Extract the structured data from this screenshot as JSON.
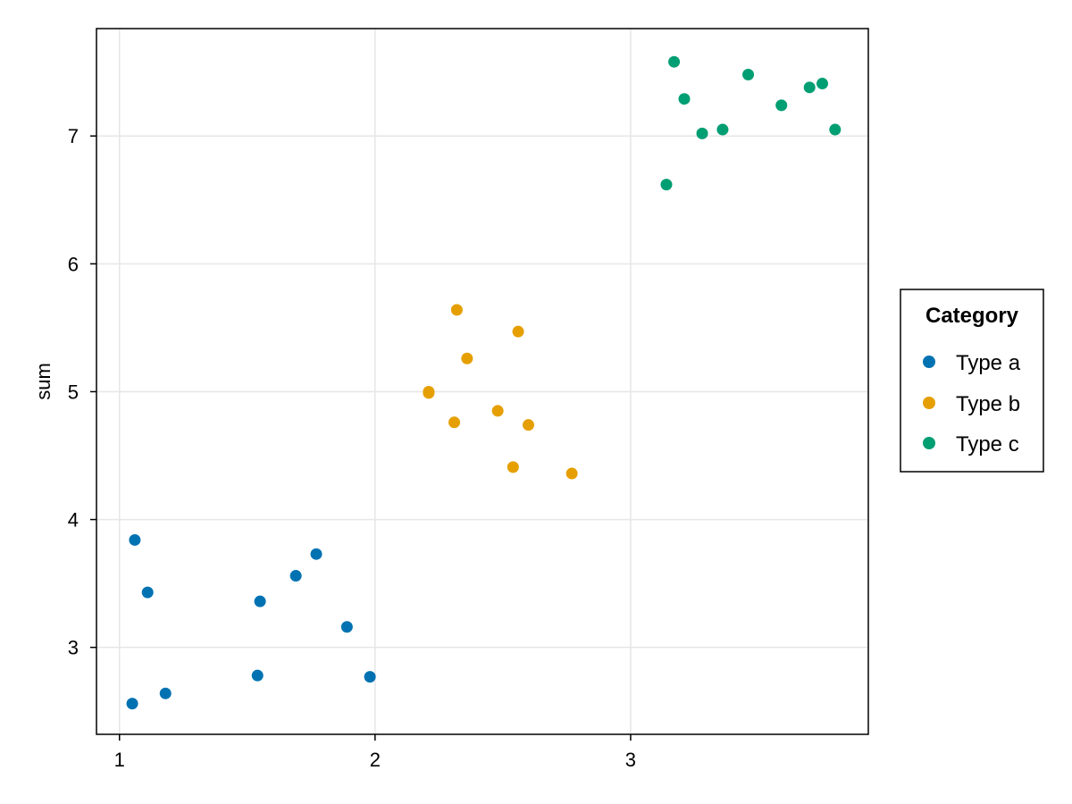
{
  "chart_data": {
    "type": "scatter",
    "xlabel": "",
    "ylabel": "sum",
    "xlim": [
      0.91,
      3.93
    ],
    "ylim": [
      2.32,
      7.84
    ],
    "x_ticks": [
      1,
      2,
      3
    ],
    "y_ticks": [
      3,
      4,
      5,
      6,
      7
    ],
    "grid": true,
    "legend": {
      "title": "Category",
      "placement": "right"
    },
    "series": [
      {
        "name": "Type a",
        "color": "#0072B2",
        "points": [
          [
            1.06,
            3.84
          ],
          [
            1.11,
            3.43
          ],
          [
            1.05,
            2.56
          ],
          [
            1.18,
            2.64
          ],
          [
            1.54,
            2.78
          ],
          [
            1.55,
            3.36
          ],
          [
            1.69,
            3.56
          ],
          [
            1.77,
            3.73
          ],
          [
            1.89,
            3.16
          ],
          [
            1.98,
            2.77
          ]
        ]
      },
      {
        "name": "Type b",
        "color": "#E69F00",
        "points": [
          [
            2.21,
            5.0
          ],
          [
            2.21,
            4.99
          ],
          [
            2.32,
            5.64
          ],
          [
            2.36,
            5.26
          ],
          [
            2.31,
            4.76
          ],
          [
            2.48,
            4.85
          ],
          [
            2.56,
            5.47
          ],
          [
            2.6,
            4.74
          ],
          [
            2.54,
            4.41
          ],
          [
            2.77,
            4.36
          ]
        ]
      },
      {
        "name": "Type c",
        "color": "#009E73",
        "points": [
          [
            3.14,
            6.62
          ],
          [
            3.17,
            7.58
          ],
          [
            3.21,
            7.29
          ],
          [
            3.28,
            7.02
          ],
          [
            3.36,
            7.05
          ],
          [
            3.46,
            7.48
          ],
          [
            3.59,
            7.24
          ],
          [
            3.7,
            7.38
          ],
          [
            3.75,
            7.41
          ],
          [
            3.8,
            7.05
          ]
        ]
      }
    ]
  }
}
